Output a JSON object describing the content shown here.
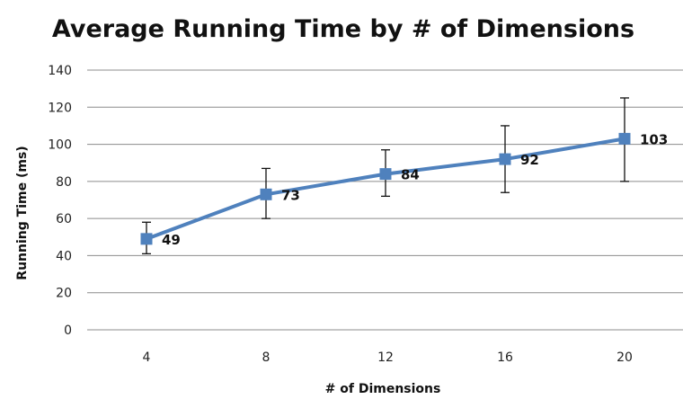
{
  "chart_data": {
    "type": "line",
    "title": "Average Running Time by # of Dimensions",
    "xlabel": "# of Dimensions",
    "ylabel": "Running Time (ms)",
    "categories": [
      "4",
      "8",
      "12",
      "16",
      "20"
    ],
    "series": [
      {
        "values": [
          49,
          73,
          84,
          92,
          103
        ],
        "error_low": [
          41,
          60,
          72,
          74,
          80
        ],
        "error_high": [
          58,
          87,
          97,
          110,
          125
        ],
        "color": "#4f81bd",
        "marker": "square"
      }
    ],
    "data_labels": [
      "49",
      "73",
      "84",
      "92",
      "103"
    ],
    "ylim": [
      0,
      140
    ],
    "yticks": [
      0,
      20,
      40,
      60,
      80,
      100,
      120,
      140
    ],
    "grid": "horizontal",
    "legend": "none"
  }
}
